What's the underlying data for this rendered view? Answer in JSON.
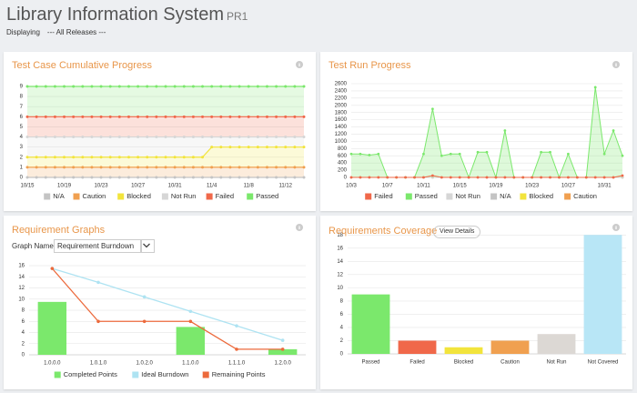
{
  "header": {
    "title": "Library Information System",
    "badge": "PR1",
    "displaying_label": "Displaying",
    "release": "--- All Releases ---"
  },
  "controls": {
    "graph_name_label": "Graph Name",
    "graph_select": "Requirement Burndown",
    "view_details": "View Details"
  },
  "chart_data": [
    {
      "type": "area",
      "title": "Test Case Cumulative Progress",
      "categories": [
        "10/15",
        null,
        null,
        null,
        "10/19",
        null,
        null,
        null,
        "10/23",
        null,
        null,
        null,
        "10/27",
        null,
        null,
        null,
        "10/31",
        null,
        null,
        null,
        "11/4",
        null,
        null,
        null,
        "11/8",
        null,
        null,
        null,
        "11/12",
        null,
        null
      ],
      "series": [
        {
          "name": "N/A",
          "color": "#c4c4c4",
          "values": [
            0,
            0,
            0,
            0,
            0,
            0,
            0,
            0,
            0,
            0,
            0,
            0,
            0,
            0,
            0,
            0,
            0,
            0,
            0,
            0,
            0,
            0,
            0,
            0,
            0,
            0,
            0,
            0,
            0,
            0,
            0
          ]
        },
        {
          "name": "Caution",
          "color": "#f0a050",
          "values": [
            1,
            1,
            1,
            1,
            1,
            1,
            1,
            1,
            1,
            1,
            1,
            1,
            1,
            1,
            1,
            1,
            1,
            1,
            1,
            1,
            1,
            1,
            1,
            1,
            1,
            1,
            1,
            1,
            1,
            1,
            1
          ]
        },
        {
          "name": "Blocked",
          "color": "#f2e43c",
          "values": [
            1,
            1,
            1,
            1,
            1,
            1,
            1,
            1,
            1,
            1,
            1,
            1,
            1,
            1,
            1,
            1,
            1,
            1,
            1,
            1,
            2,
            2,
            2,
            2,
            2,
            2,
            2,
            2,
            2,
            2,
            2
          ]
        },
        {
          "name": "Not Run",
          "color": "#d6d6d6",
          "values": [
            2,
            2,
            2,
            2,
            2,
            2,
            2,
            2,
            2,
            2,
            2,
            2,
            2,
            2,
            2,
            2,
            2,
            2,
            2,
            2,
            1,
            1,
            1,
            1,
            1,
            1,
            1,
            1,
            1,
            1,
            1
          ]
        },
        {
          "name": "Failed",
          "color": "#f0684a",
          "values": [
            2,
            2,
            2,
            2,
            2,
            2,
            2,
            2,
            2,
            2,
            2,
            2,
            2,
            2,
            2,
            2,
            2,
            2,
            2,
            2,
            2,
            2,
            2,
            2,
            2,
            2,
            2,
            2,
            2,
            2,
            2
          ]
        },
        {
          "name": "Passed",
          "color": "#7be86c",
          "values": [
            3,
            3,
            3,
            3,
            3,
            3,
            3,
            3,
            3,
            3,
            3,
            3,
            3,
            3,
            3,
            3,
            3,
            3,
            3,
            3,
            3,
            3,
            3,
            3,
            3,
            3,
            3,
            3,
            3,
            3,
            3
          ]
        }
      ],
      "ylim": [
        0,
        9
      ],
      "yticks": [
        0,
        1,
        2,
        3,
        4,
        5,
        6,
        7,
        8,
        9
      ],
      "grid": true,
      "legend": "bottom"
    },
    {
      "type": "line",
      "title": "Test Run Progress",
      "categories": [
        "10/3",
        null,
        null,
        null,
        "10/7",
        null,
        null,
        null,
        "10/11",
        null,
        null,
        null,
        "10/15",
        null,
        null,
        null,
        "10/19",
        null,
        null,
        null,
        "10/23",
        null,
        null,
        null,
        "10/27",
        null,
        null,
        null,
        "10/31",
        null,
        null
      ],
      "series": [
        {
          "name": "Failed",
          "color": "#f0684a",
          "values": [
            0,
            0,
            0,
            0,
            0,
            0,
            0,
            0,
            0,
            50,
            0,
            0,
            0,
            0,
            0,
            0,
            0,
            0,
            0,
            0,
            0,
            0,
            0,
            0,
            0,
            0,
            0,
            0,
            0,
            0,
            50
          ]
        },
        {
          "name": "Passed",
          "color": "#7be86c",
          "fill": true,
          "values": [
            650,
            650,
            620,
            650,
            0,
            0,
            0,
            0,
            650,
            1900,
            600,
            650,
            650,
            0,
            700,
            700,
            0,
            1300,
            0,
            0,
            0,
            700,
            700,
            0,
            650,
            0,
            0,
            2500,
            650,
            1300,
            600
          ]
        },
        {
          "name": "Not Run",
          "color": "#d6d6d6",
          "values": [
            0,
            0,
            0,
            0,
            0,
            0,
            0,
            0,
            0,
            0,
            0,
            0,
            0,
            0,
            0,
            0,
            0,
            0,
            0,
            0,
            0,
            0,
            0,
            0,
            0,
            0,
            0,
            0,
            0,
            0,
            0
          ]
        },
        {
          "name": "N/A",
          "color": "#c4c4c4",
          "values": [
            0,
            0,
            0,
            0,
            0,
            0,
            0,
            0,
            0,
            0,
            0,
            0,
            0,
            0,
            0,
            0,
            0,
            0,
            0,
            0,
            0,
            0,
            0,
            0,
            0,
            0,
            0,
            0,
            0,
            0,
            0
          ]
        },
        {
          "name": "Blocked",
          "color": "#f2e43c",
          "values": [
            0,
            0,
            0,
            0,
            0,
            0,
            0,
            0,
            0,
            0,
            0,
            0,
            0,
            0,
            0,
            0,
            0,
            0,
            0,
            0,
            0,
            0,
            0,
            0,
            0,
            0,
            0,
            0,
            0,
            0,
            0
          ]
        },
        {
          "name": "Caution",
          "color": "#f0a050",
          "values": [
            0,
            0,
            0,
            0,
            0,
            0,
            0,
            0,
            0,
            0,
            0,
            0,
            0,
            0,
            0,
            0,
            0,
            0,
            0,
            0,
            0,
            0,
            0,
            0,
            0,
            0,
            0,
            0,
            0,
            0,
            0
          ]
        }
      ],
      "ylim": [
        0,
        2600
      ],
      "yticks": [
        0,
        200,
        400,
        600,
        800,
        1000,
        1200,
        1400,
        1600,
        1800,
        2000,
        2200,
        2400,
        2600
      ],
      "grid": true,
      "legend": "bottom"
    },
    {
      "type": "combo",
      "title": "Requirement Graphs",
      "categories": [
        "1.0.0.0",
        "1.0.1.0",
        "1.0.2.0",
        "1.1.0.0",
        "1.1.1.0",
        "1.2.0.0"
      ],
      "series": [
        {
          "name": "Completed Points",
          "type": "bar",
          "color": "#7be86c",
          "values": [
            9.5,
            0,
            0,
            5,
            0,
            1
          ]
        },
        {
          "name": "Ideal Burndown",
          "type": "line",
          "color": "#aee3f2",
          "values": [
            15.5,
            13,
            10.4,
            7.8,
            5.2,
            2.6
          ]
        },
        {
          "name": "Remaining Points",
          "type": "line",
          "color": "#ec6a3c",
          "values": [
            15.5,
            6,
            6,
            6,
            1,
            1
          ]
        }
      ],
      "ylim": [
        0,
        16.5
      ],
      "yticks": [
        0,
        2,
        4,
        6,
        8,
        10,
        12,
        14,
        16
      ],
      "grid": true,
      "legend": "bottom"
    },
    {
      "type": "bar",
      "title": "Requirements Coverage",
      "categories": [
        "Passed",
        "Failed",
        "Blocked",
        "Caution",
        "Not Run",
        "Not Covered"
      ],
      "values": [
        9,
        2,
        1,
        2,
        3,
        18
      ],
      "colors": [
        "#7be86c",
        "#f0684a",
        "#f2e43c",
        "#f0a050",
        "#dcd8d4",
        "#b8e6f6"
      ],
      "ylim": [
        0,
        19
      ],
      "yticks": [
        0,
        2,
        4,
        6,
        8,
        10,
        12,
        14,
        16,
        18
      ],
      "grid": true
    }
  ]
}
